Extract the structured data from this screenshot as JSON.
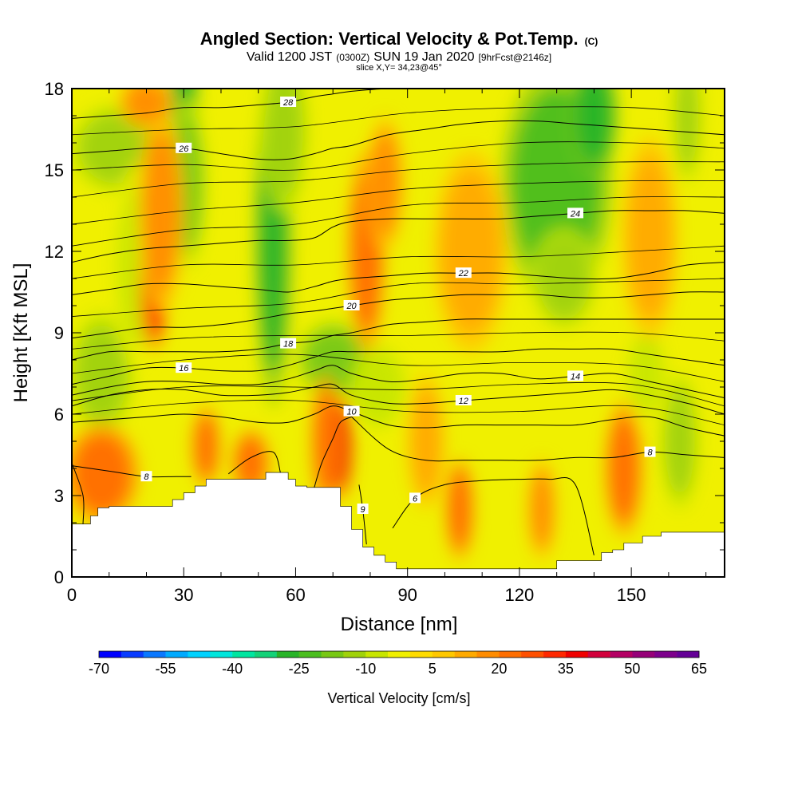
{
  "header": {
    "title": "Angled Section: Vertical Velocity & Pot.Temp.",
    "title_unit": "(C)",
    "valid_prefix": "Valid 1200 JST",
    "valid_utc": "(0300Z)",
    "valid_date": "SUN 19 Jan 2020",
    "forecast": "[9hrFcst@2146z]",
    "slice": "slice X,Y= 34,23@45°"
  },
  "chart_data": {
    "type": "heatmap",
    "title": "Angled Section: Vertical Velocity & Pot.Temp. (C)",
    "xlabel": "Distance [nm]",
    "ylabel": "Height [Kft MSL]",
    "xlim": [
      0,
      175
    ],
    "ylim": [
      0,
      18
    ],
    "xticks": [
      0,
      30,
      60,
      90,
      120,
      150
    ],
    "yticks": [
      0,
      3,
      6,
      9,
      12,
      15,
      18
    ],
    "grid": false,
    "shaded_field": "Vertical Velocity [cm/s]",
    "contour_field": "Potential Temperature (C)",
    "colorbar": {
      "title": "Vertical Velocity [cm/s]",
      "tick_labels": [
        "-70",
        "-55",
        "-40",
        "-25",
        "-10",
        "5",
        "20",
        "35",
        "50",
        "65"
      ],
      "tick_values": [
        -70,
        -55,
        -40,
        -25,
        -10,
        5,
        20,
        35,
        50,
        65
      ],
      "colors": [
        "#0000ff",
        "#0a3cff",
        "#0a78ff",
        "#00aaff",
        "#00d2ff",
        "#00e6dc",
        "#00e6a0",
        "#14d278",
        "#28b428",
        "#4bbe1e",
        "#78c814",
        "#a0d20a",
        "#c8e600",
        "#f0f000",
        "#ffdc00",
        "#ffc800",
        "#ffaa00",
        "#ff8c00",
        "#ff6e00",
        "#ff5000",
        "#ff2800",
        "#f00000",
        "#d2003c",
        "#b40064",
        "#960078",
        "#7d008c",
        "#640096"
      ]
    },
    "terrain_height_kft": {
      "x": [
        0,
        5,
        5,
        7,
        7,
        10,
        10,
        27,
        27,
        30,
        30,
        33,
        33,
        36,
        36,
        52,
        52,
        58,
        58,
        60,
        60,
        63,
        63,
        72,
        72,
        75,
        75,
        78,
        78,
        81,
        81,
        84,
        84,
        87,
        87,
        90,
        90,
        130,
        130,
        142,
        142,
        145,
        145,
        148,
        148,
        153,
        153,
        158,
        158,
        175
      ],
      "y": [
        1.95,
        1.95,
        2.25,
        2.25,
        2.55,
        2.55,
        2.6,
        2.6,
        2.85,
        2.85,
        3.1,
        3.1,
        3.35,
        3.35,
        3.6,
        3.6,
        3.85,
        3.85,
        3.6,
        3.6,
        3.35,
        3.35,
        3.3,
        3.3,
        2.6,
        2.6,
        1.75,
        1.75,
        1.1,
        1.1,
        0.8,
        0.8,
        0.55,
        0.55,
        0.3,
        0.3,
        0.3,
        0.3,
        0.6,
        0.6,
        0.9,
        0.9,
        1.0,
        1.0,
        1.25,
        1.25,
        1.5,
        1.5,
        1.65,
        1.65
      ]
    },
    "velocity_features": [
      {
        "x": 30,
        "y": 17.5,
        "v": -28,
        "rx": 3,
        "ry": 2.0
      },
      {
        "x": 31,
        "y": 14.5,
        "v": -18,
        "rx": 4,
        "ry": 2.5
      },
      {
        "x": 54,
        "y": 12.5,
        "v": -26,
        "rx": 4,
        "ry": 5.0
      },
      {
        "x": 57,
        "y": 16.5,
        "v": -15,
        "rx": 5,
        "ry": 2.5
      },
      {
        "x": 130,
        "y": 14.5,
        "v": -24,
        "rx": 12,
        "ry": 3.5
      },
      {
        "x": 140,
        "y": 17.0,
        "v": -30,
        "rx": 5,
        "ry": 1.8
      },
      {
        "x": 132,
        "y": 11.0,
        "v": -14,
        "rx": 7,
        "ry": 1.5
      },
      {
        "x": 12,
        "y": 15.8,
        "v": -12,
        "rx": 10,
        "ry": 1.3
      },
      {
        "x": 8,
        "y": 7.5,
        "v": -12,
        "rx": 7,
        "ry": 1.8
      },
      {
        "x": 18,
        "y": 11.5,
        "v": -8,
        "rx": 6,
        "ry": 3.0
      },
      {
        "x": 70,
        "y": 8.0,
        "v": -18,
        "rx": 8,
        "ry": 1.2
      },
      {
        "x": 82,
        "y": 7.0,
        "v": -10,
        "rx": 6,
        "ry": 1.2
      },
      {
        "x": 165,
        "y": 17.0,
        "v": -14,
        "rx": 3,
        "ry": 2.0
      },
      {
        "x": 163,
        "y": 5.0,
        "v": -12,
        "rx": 4,
        "ry": 2.0
      },
      {
        "x": 154,
        "y": 7.5,
        "v": -8,
        "rx": 5,
        "ry": 1.5
      },
      {
        "x": 22,
        "y": 10.8,
        "v": 32,
        "rx": 3,
        "ry": 2.0
      },
      {
        "x": 24,
        "y": 13.5,
        "v": 18,
        "rx": 5,
        "ry": 3.0
      },
      {
        "x": 72,
        "y": 4.8,
        "v": 38,
        "rx": 2.5,
        "ry": 1.5
      },
      {
        "x": 68,
        "y": 5.0,
        "v": 20,
        "rx": 3,
        "ry": 2.0
      },
      {
        "x": 36,
        "y": 4.8,
        "v": 22,
        "rx": 3,
        "ry": 1.2
      },
      {
        "x": 8,
        "y": 3.8,
        "v": 20,
        "rx": 8,
        "ry": 1.5
      },
      {
        "x": 48,
        "y": 4.2,
        "v": 20,
        "rx": 4,
        "ry": 1.0
      },
      {
        "x": 79,
        "y": 12.0,
        "v": 20,
        "rx": 4,
        "ry": 3.0
      },
      {
        "x": 84,
        "y": 14.5,
        "v": 16,
        "rx": 4,
        "ry": 2.0
      },
      {
        "x": 104,
        "y": 2.5,
        "v": 22,
        "rx": 3,
        "ry": 1.5
      },
      {
        "x": 126,
        "y": 2.5,
        "v": 18,
        "rx": 3,
        "ry": 1.5
      },
      {
        "x": 148,
        "y": 4.0,
        "v": 20,
        "rx": 4,
        "ry": 2.0
      },
      {
        "x": 107,
        "y": 12.0,
        "v": 12,
        "rx": 8,
        "ry": 3.0
      },
      {
        "x": 95,
        "y": 5.0,
        "v": 12,
        "rx": 4,
        "ry": 2.0
      },
      {
        "x": 155,
        "y": 12.5,
        "v": 12,
        "rx": 6,
        "ry": 3.0
      },
      {
        "x": 20,
        "y": 17.5,
        "v": 18,
        "rx": 6,
        "ry": 0.8
      }
    ],
    "theta_contours": [
      {
        "level": 6,
        "label": "6",
        "x": [
          86,
          92,
          100,
          110,
          120,
          128,
          135,
          140
        ],
        "y": [
          1.8,
          2.9,
          3.4,
          3.55,
          3.6,
          3.6,
          3.4,
          0.8
        ]
      },
      {
        "level": 8,
        "label": "8",
        "x": [
          0,
          10,
          20,
          28,
          32
        ],
        "y": [
          4.1,
          3.9,
          3.7,
          3.7,
          3.7
        ]
      },
      {
        "level": 8,
        "label": "",
        "x": [
          42,
          48,
          54,
          56
        ],
        "y": [
          3.8,
          4.4,
          4.6,
          3.8
        ]
      },
      {
        "level": 8,
        "label": "",
        "x": [
          65,
          67,
          70,
          72,
          75
        ],
        "y": [
          3.3,
          4.2,
          5.1,
          5.7,
          5.9
        ]
      },
      {
        "level": 8,
        "label": "8",
        "x": [
          75,
          85,
          95,
          105,
          115,
          125,
          135,
          145,
          155,
          165,
          175
        ],
        "y": [
          5.9,
          4.7,
          4.3,
          4.3,
          4.3,
          4.3,
          4.4,
          4.4,
          4.6,
          4.5,
          4.4
        ]
      },
      {
        "level": 8,
        "label": "",
        "x": [
          0,
          3,
          3
        ],
        "y": [
          4.2,
          3.0,
          1.95
        ]
      },
      {
        "level": 9,
        "label": "9",
        "x": [
          77,
          78,
          79
        ],
        "y": [
          3.4,
          2.5,
          1.2
        ]
      },
      {
        "level": 10,
        "label": "10",
        "x": [
          0,
          10,
          20,
          30,
          40,
          50,
          58,
          65,
          70,
          75,
          85,
          95,
          105,
          115,
          125,
          135,
          145,
          155,
          165,
          175
        ],
        "y": [
          5.7,
          5.8,
          5.9,
          6.0,
          5.9,
          5.7,
          5.7,
          6.0,
          6.3,
          6.1,
          5.6,
          5.5,
          5.6,
          5.6,
          5.6,
          5.6,
          5.8,
          5.9,
          5.5,
          5.2
        ]
      },
      {
        "level": 12,
        "label": "12",
        "x": [
          0,
          10,
          20,
          30,
          40,
          50,
          58,
          65,
          70,
          75,
          85,
          95,
          105,
          115,
          125,
          135,
          145,
          155,
          165,
          175
        ],
        "y": [
          6.3,
          6.7,
          6.9,
          6.9,
          6.7,
          6.7,
          6.8,
          7.0,
          7.1,
          6.7,
          6.4,
          6.4,
          6.5,
          6.6,
          6.7,
          6.8,
          6.9,
          6.7,
          6.4,
          6.0
        ]
      },
      {
        "level": 14,
        "label": "14",
        "x": [
          0,
          10,
          20,
          30,
          40,
          50,
          58,
          65,
          70,
          75,
          85,
          95,
          105,
          115,
          125,
          135,
          145,
          155,
          165,
          175
        ],
        "y": [
          6.7,
          7.0,
          7.2,
          7.2,
          7.1,
          7.1,
          7.3,
          7.6,
          7.8,
          7.5,
          7.2,
          7.3,
          7.5,
          7.5,
          7.3,
          7.4,
          7.5,
          7.2,
          6.9,
          6.6
        ]
      },
      {
        "level": 16,
        "label": "16",
        "x": [
          0,
          10,
          20,
          30,
          40,
          50,
          58,
          65,
          70,
          75,
          85,
          95,
          105,
          115,
          125,
          135,
          145,
          155,
          165,
          175
        ],
        "y": [
          7.1,
          7.4,
          7.7,
          7.7,
          7.6,
          7.6,
          7.8,
          8.1,
          8.3,
          8.3,
          8.3,
          8.3,
          8.3,
          8.3,
          8.4,
          8.4,
          8.4,
          8.2,
          8.0,
          7.8
        ]
      },
      {
        "level": 18,
        "label": "18",
        "x": [
          0,
          10,
          20,
          30,
          40,
          50,
          58,
          65,
          70,
          75,
          85,
          95,
          105,
          115,
          125,
          135,
          145,
          155,
          165,
          175
        ],
        "y": [
          8.0,
          8.3,
          8.3,
          8.3,
          8.3,
          8.4,
          8.6,
          8.7,
          8.9,
          9.0,
          9.3,
          9.4,
          9.5,
          9.5,
          9.5,
          9.5,
          9.5,
          9.5,
          9.5,
          9.5
        ]
      },
      {
        "level": 20,
        "label": "20",
        "x": [
          0,
          10,
          20,
          30,
          40,
          50,
          58,
          65,
          70,
          75,
          85,
          95,
          105,
          115,
          125,
          135,
          145,
          155,
          165,
          175
        ],
        "y": [
          8.8,
          9.0,
          9.2,
          9.2,
          9.3,
          9.5,
          9.7,
          9.8,
          9.9,
          10.0,
          10.2,
          10.3,
          10.4,
          10.4,
          10.4,
          10.3,
          10.3,
          10.4,
          10.5,
          10.5
        ]
      },
      {
        "level": 22,
        "label": "22",
        "x": [
          0,
          10,
          20,
          30,
          40,
          50,
          58,
          65,
          70,
          75,
          85,
          95,
          105,
          115,
          125,
          135,
          145,
          155,
          165,
          175
        ],
        "y": [
          10.4,
          10.6,
          10.8,
          10.8,
          10.7,
          10.6,
          10.5,
          10.7,
          10.9,
          11.0,
          11.1,
          11.2,
          11.2,
          11.2,
          11.1,
          11.0,
          11.0,
          11.2,
          11.5,
          11.6
        ]
      },
      {
        "level": 24,
        "label": "24",
        "x": [
          0,
          10,
          20,
          30,
          40,
          50,
          58,
          65,
          70,
          75,
          85,
          95,
          105,
          115,
          125,
          135,
          145,
          155,
          165,
          175
        ],
        "y": [
          11.6,
          11.9,
          12.1,
          12.2,
          12.3,
          12.4,
          12.4,
          12.5,
          12.9,
          13.1,
          13.2,
          13.2,
          13.2,
          13.2,
          13.3,
          13.4,
          13.5,
          13.5,
          13.5,
          13.4
        ]
      },
      {
        "level": 26,
        "label": "26",
        "x": [
          0,
          10,
          20,
          30,
          40,
          50,
          58,
          65,
          70,
          75,
          85,
          95,
          105,
          115,
          125,
          135,
          145,
          155,
          165,
          175
        ],
        "y": [
          15.6,
          15.7,
          15.8,
          15.8,
          15.6,
          15.4,
          15.4,
          15.6,
          15.8,
          15.9,
          16.3,
          16.5,
          16.7,
          16.8,
          16.8,
          16.7,
          16.6,
          16.5,
          16.4,
          16.3
        ]
      },
      {
        "level": 28,
        "label": "28",
        "x": [
          0,
          10,
          20,
          30,
          40,
          50,
          58,
          65,
          70,
          75,
          85,
          95,
          105,
          115,
          125,
          135,
          145,
          155,
          165,
          175
        ],
        "y": [
          16.9,
          17.0,
          17.1,
          17.3,
          17.3,
          17.4,
          17.5,
          17.7,
          17.8,
          17.9,
          18.0,
          18.0,
          18.0,
          18.0,
          18.0,
          18.0,
          18.0,
          18.0,
          18.0,
          18.0
        ]
      }
    ],
    "extra_contours": [
      {
        "x": [
          0,
          30,
          60,
          90,
          120,
          150,
          175
        ],
        "y": [
          6.0,
          6.4,
          6.5,
          6.1,
          6.1,
          6.3,
          5.6
        ]
      },
      {
        "x": [
          0,
          30,
          60,
          90,
          120,
          150,
          175
        ],
        "y": [
          6.5,
          7.0,
          7.0,
          6.9,
          7.1,
          7.1,
          6.3
        ]
      },
      {
        "x": [
          0,
          30,
          60,
          90,
          120,
          150,
          175
        ],
        "y": [
          7.5,
          8.0,
          8.2,
          7.8,
          7.9,
          7.8,
          7.2
        ]
      },
      {
        "x": [
          0,
          30,
          60,
          90,
          120,
          150,
          175
        ],
        "y": [
          8.4,
          8.8,
          8.9,
          8.9,
          9.0,
          9.0,
          8.7
        ]
      },
      {
        "x": [
          0,
          30,
          60,
          90,
          120,
          150,
          175
        ],
        "y": [
          9.6,
          9.9,
          10.1,
          10.8,
          10.8,
          10.9,
          11.0
        ]
      },
      {
        "x": [
          0,
          30,
          60,
          90,
          120,
          150,
          175
        ],
        "y": [
          11.0,
          11.5,
          11.5,
          11.8,
          11.8,
          12.0,
          12.2
        ]
      },
      {
        "x": [
          0,
          30,
          60,
          90,
          120,
          150,
          175
        ],
        "y": [
          12.2,
          12.8,
          13.0,
          13.7,
          13.8,
          14.0,
          14.0
        ]
      },
      {
        "x": [
          0,
          30,
          60,
          90,
          120,
          150,
          175
        ],
        "y": [
          13.0,
          13.5,
          13.8,
          14.3,
          14.5,
          14.6,
          14.6
        ]
      },
      {
        "x": [
          0,
          30,
          60,
          90,
          120,
          150,
          175
        ],
        "y": [
          14.0,
          14.5,
          14.6,
          15.0,
          15.2,
          15.3,
          15.3
        ]
      },
      {
        "x": [
          0,
          30,
          60,
          90,
          120,
          150,
          175
        ],
        "y": [
          15.0,
          15.2,
          15.0,
          15.6,
          16.0,
          16.0,
          15.8
        ]
      },
      {
        "x": [
          0,
          30,
          60,
          90,
          120,
          150,
          175
        ],
        "y": [
          16.3,
          16.5,
          16.6,
          17.1,
          17.3,
          17.3,
          17.0
        ]
      }
    ]
  }
}
